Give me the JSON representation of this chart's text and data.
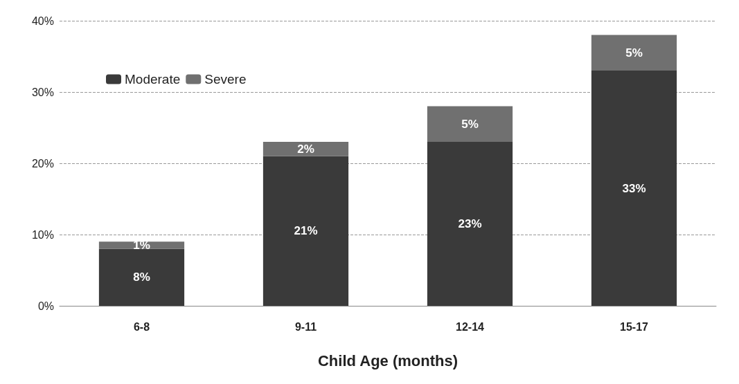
{
  "chart_data": {
    "type": "bar",
    "stacked": true,
    "xlabel": "Child Age (months)",
    "categories": [
      "6-8",
      "9-11",
      "12-14",
      "15-17"
    ],
    "series": [
      {
        "name": "Moderate",
        "color": "#3a3a3a",
        "values": [
          8,
          21,
          23,
          33
        ],
        "value_labels": [
          "8%",
          "21%",
          "23%",
          "33%"
        ]
      },
      {
        "name": "Severe",
        "color": "#707070",
        "values": [
          1,
          2,
          5,
          5
        ],
        "value_labels": [
          "1%",
          "2%",
          "5%",
          "5%"
        ]
      }
    ],
    "ylim": [
      0,
      40
    ],
    "yticks": [
      {
        "value": 0,
        "label": "0%"
      },
      {
        "value": 10,
        "label": "10%"
      },
      {
        "value": 20,
        "label": "20%"
      },
      {
        "value": 30,
        "label": "30%"
      },
      {
        "value": 40,
        "label": "40%"
      }
    ],
    "grid": "y",
    "legend": "top left"
  }
}
